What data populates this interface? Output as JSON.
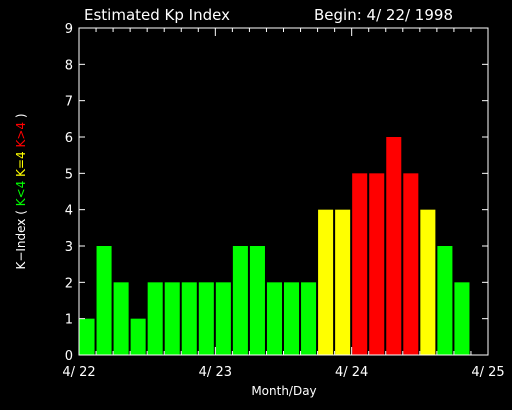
{
  "chart_data": {
    "type": "bar",
    "title": "Estimated Kp Index",
    "begin_label": "Begin: 4/ 22/ 1998",
    "xlabel": "Month/Day",
    "ylabel_parts": [
      {
        "text": "K−Index ( ",
        "color": "#ffffff"
      },
      {
        "text": "K<4",
        "color": "#00ff00"
      },
      {
        "text": " K=4",
        "color": "#ffff00"
      },
      {
        "text": " K>4",
        "color": "#ff0000"
      },
      {
        "text": " )",
        "color": "#ffffff"
      }
    ],
    "ylim": [
      0,
      9
    ],
    "yticks": [
      0,
      1,
      2,
      3,
      4,
      5,
      6,
      7,
      8,
      9
    ],
    "xlim": [
      0,
      24
    ],
    "xtick_labels": [
      {
        "pos": 0,
        "label": "4/ 22"
      },
      {
        "pos": 8,
        "label": "4/ 23"
      },
      {
        "pos": 16,
        "label": "4/ 24"
      },
      {
        "pos": 24,
        "label": "4/ 25"
      }
    ],
    "values": [
      1,
      3,
      2,
      1,
      2,
      2,
      2,
      2,
      2,
      3,
      3,
      2,
      2,
      2,
      4,
      4,
      5,
      5,
      6,
      5,
      4,
      3,
      2
    ],
    "colors": {
      "below": "#00ff00",
      "equal": "#ffff00",
      "above": "#ff0000",
      "axis": "#ffffff"
    }
  }
}
